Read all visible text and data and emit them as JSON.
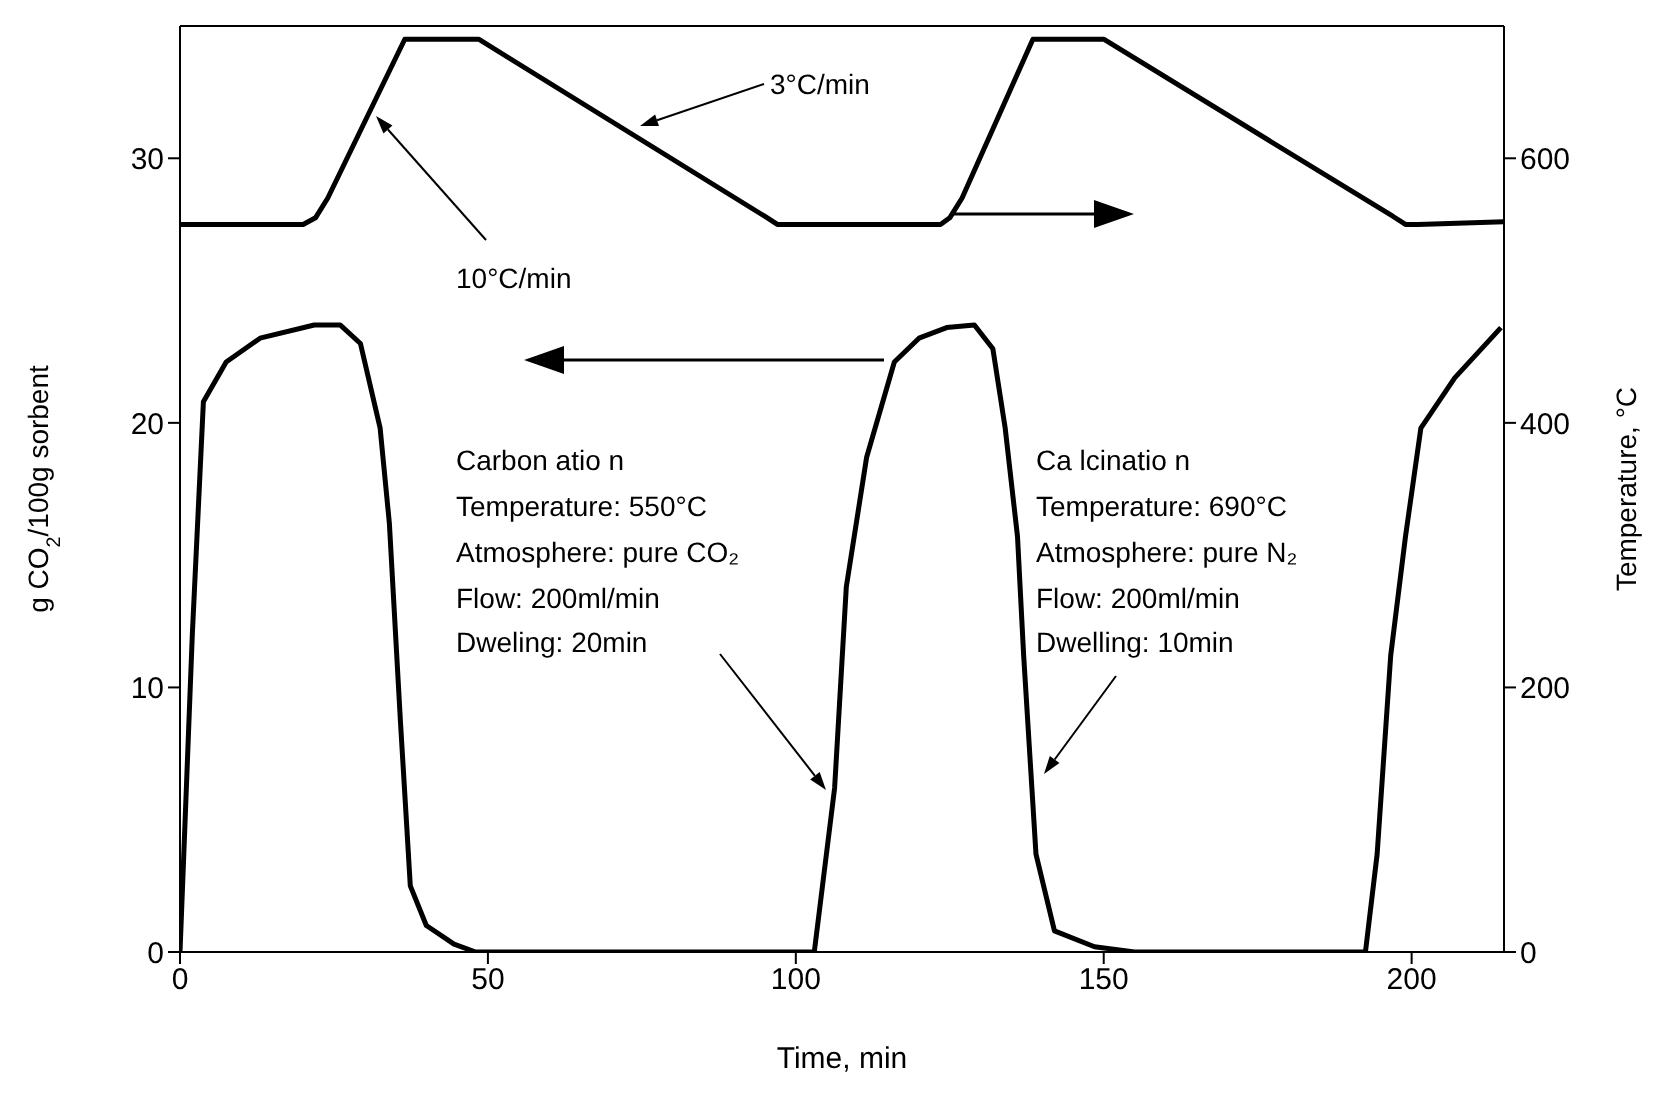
{
  "chart_data": {
    "type": "line",
    "xlabel": "Time, min",
    "ylabel": "g CO$_{2}$/100g sorbent",
    "y2label": "Temperature, °C",
    "xlim": [
      0,
      215
    ],
    "xticks": [
      0,
      50,
      100,
      150,
      200
    ],
    "ylim": [
      0,
      35
    ],
    "yticks": [
      0,
      10,
      20,
      30
    ],
    "y2lim": [
      0,
      700
    ],
    "y2ticks": [
      0,
      200,
      400,
      600
    ],
    "marker": "none",
    "line_style": "solid",
    "series": [
      {
        "color": "#000000",
        "x": [
          0,
          2,
          3.8,
          7.5,
          13,
          21.8,
          26,
          29.3,
          32.5,
          34,
          35.8,
          37.4,
          40,
          44.5,
          48,
          103,
          106.3,
          108.2,
          111.5,
          116,
          120,
          124.5,
          129,
          132,
          134,
          136,
          137,
          139,
          142,
          148.5,
          155,
          192.5,
          194.4,
          196.6,
          199,
          201.5,
          207,
          214.5
        ],
        "values": [
          0,
          12,
          20.8,
          22.3,
          23.2,
          23.7,
          23.7,
          23,
          19.8,
          16.2,
          8.7,
          2.5,
          1,
          0.3,
          0,
          0,
          6.2,
          13.8,
          18.7,
          22.3,
          23.2,
          23.6,
          23.7,
          22.8,
          19.8,
          15.7,
          11.2,
          3.7,
          0.8,
          0.2,
          0,
          0,
          3.7,
          11.2,
          15.7,
          19.8,
          21.7,
          23.6
        ]
      },
      {
        "color": "#000000",
        "axis": "y2",
        "x": [
          0,
          20,
          22,
          24,
          36.5,
          48.5,
          95,
          97,
          100,
          123.5,
          125,
          127,
          138.5,
          150,
          197,
          199,
          201,
          215
        ],
        "values": [
          550,
          550,
          555,
          570,
          690,
          690,
          556,
          550,
          550,
          550,
          555,
          570,
          690,
          690,
          556,
          550,
          550,
          552
        ]
      }
    ],
    "annotations": [
      "3°C/min",
      "10°C/min",
      "Carbon atio n",
      "Temperature: 550°C",
      "Atmosphere: pure CO₂",
      "Flow: 200ml/min",
      "Dweling: 20min",
      "Ca lcinatio n",
      "Temperature: 690°C",
      "Atmosphere: pure N₂",
      "Flow: 200ml/min",
      "Dwelling: 10min"
    ]
  }
}
